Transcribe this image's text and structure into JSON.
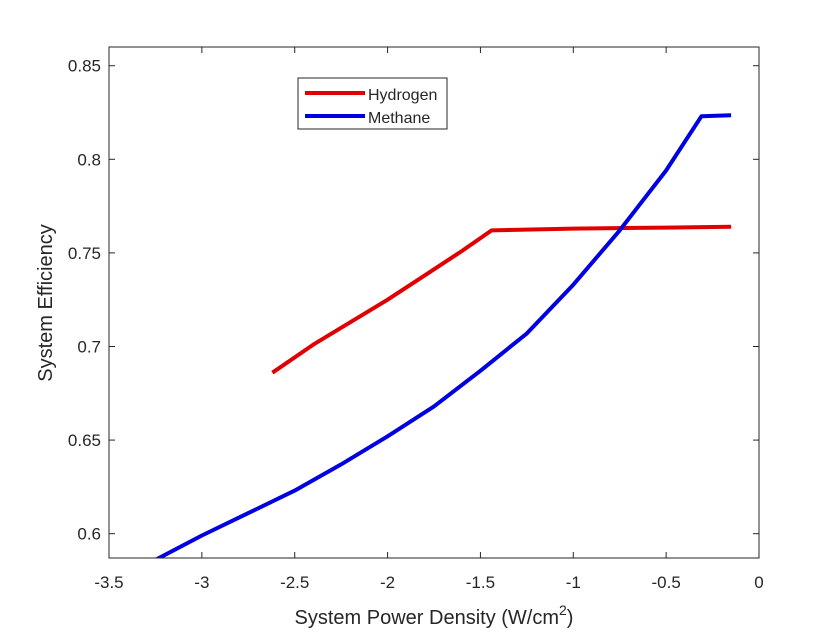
{
  "chart_data": {
    "type": "line",
    "xlabel": "System Power Density (W/cm",
    "xlabel_sup": "2",
    "xlabel_end": ")",
    "ylabel": "System Efficiency",
    "xlim": [
      -3.5,
      0
    ],
    "ylim": [
      0.587,
      0.86
    ],
    "xticks": [
      -3.5,
      -3,
      -2.5,
      -2,
      -1.5,
      -1,
      -0.5,
      0
    ],
    "xtick_labels": [
      "-3.5",
      "-3",
      "-2.5",
      "-2",
      "-1.5",
      "-1",
      "-0.5",
      "0"
    ],
    "yticks": [
      0.6,
      0.65,
      0.7,
      0.75,
      0.8,
      0.85
    ],
    "ytick_labels": [
      "0.6",
      "0.65",
      "0.7",
      "0.75",
      "0.8",
      "0.85"
    ],
    "legend_position": "top-left inside",
    "series": [
      {
        "name": "Hydrogen",
        "color": "#e00000",
        "x": [
          -2.62,
          -2.4,
          -2.2,
          -2.0,
          -1.8,
          -1.6,
          -1.44,
          -1.0,
          -0.5,
          -0.15
        ],
        "y": [
          0.686,
          0.701,
          0.713,
          0.725,
          0.738,
          0.751,
          0.762,
          0.763,
          0.7635,
          0.764
        ]
      },
      {
        "name": "Methane",
        "color": "#0000e0",
        "x": [
          -3.25,
          -3.0,
          -2.75,
          -2.5,
          -2.25,
          -2.0,
          -1.75,
          -1.5,
          -1.25,
          -1.0,
          -0.75,
          -0.5,
          -0.31,
          -0.15
        ],
        "y": [
          0.586,
          0.599,
          0.611,
          0.623,
          0.637,
          0.652,
          0.668,
          0.687,
          0.707,
          0.733,
          0.762,
          0.794,
          0.823,
          0.8235
        ]
      }
    ]
  }
}
